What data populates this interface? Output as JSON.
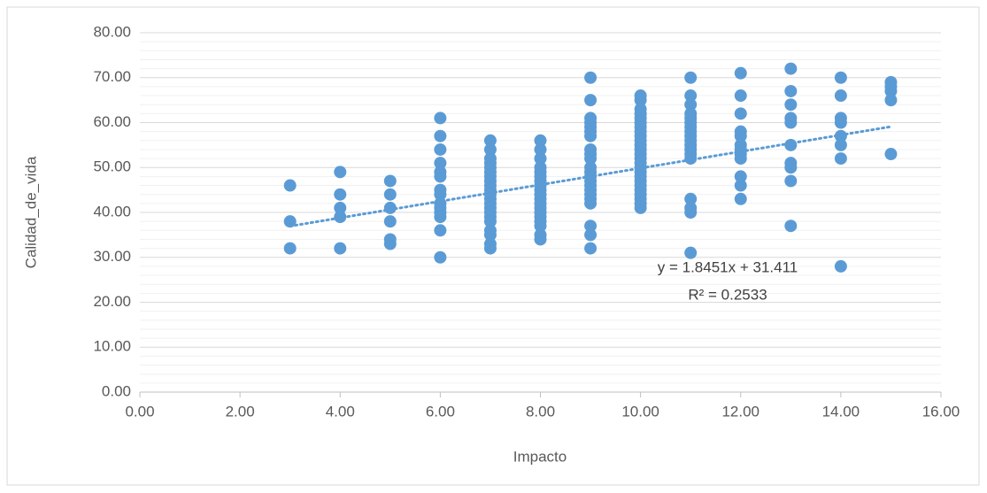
{
  "chart_data": {
    "type": "scatter",
    "x_label": "Impacto",
    "y_label": "Calidad_de_vida",
    "xlim": [
      0,
      16
    ],
    "ylim": [
      0,
      80
    ],
    "xticks": [
      {
        "value": 0,
        "label": "0.00"
      },
      {
        "value": 2,
        "label": "2.00"
      },
      {
        "value": 4,
        "label": "4.00"
      },
      {
        "value": 6,
        "label": "6.00"
      },
      {
        "value": 8,
        "label": "8.00"
      },
      {
        "value": 10,
        "label": "10.00"
      },
      {
        "value": 12,
        "label": "12.00"
      },
      {
        "value": 14,
        "label": "14.00"
      },
      {
        "value": 16,
        "label": "16.00"
      }
    ],
    "yticks": [
      {
        "value": 0,
        "label": "0.00"
      },
      {
        "value": 10,
        "label": "10.00"
      },
      {
        "value": 20,
        "label": "20.00"
      },
      {
        "value": 30,
        "label": "30.00"
      },
      {
        "value": 40,
        "label": "40.00"
      },
      {
        "value": 50,
        "label": "50.00"
      },
      {
        "value": 60,
        "label": "60.00"
      },
      {
        "value": 70,
        "label": "70.00"
      },
      {
        "value": 80,
        "label": "80.00"
      }
    ],
    "grid": true,
    "series": [
      {
        "color": "#5b9bd5",
        "x": [
          3,
          3,
          3,
          4,
          4,
          4,
          4,
          4,
          5,
          5,
          5,
          5,
          5,
          5,
          6,
          6,
          6,
          6,
          6,
          6,
          6,
          6,
          6,
          6,
          6,
          6,
          6,
          6,
          7,
          7,
          7,
          7,
          7,
          7,
          7,
          7,
          7,
          7,
          7,
          7,
          7,
          7,
          7,
          7,
          7,
          7,
          7,
          7,
          7,
          8,
          8,
          8,
          8,
          8,
          8,
          8,
          8,
          8,
          8,
          8,
          8,
          8,
          8,
          8,
          8,
          8,
          8,
          8,
          9,
          9,
          9,
          9,
          9,
          9,
          9,
          9,
          9,
          9,
          9,
          9,
          9,
          9,
          9,
          9,
          9,
          9,
          9,
          9,
          9,
          9,
          10,
          10,
          10,
          10,
          10,
          10,
          10,
          10,
          10,
          10,
          10,
          10,
          10,
          10,
          10,
          10,
          10,
          10,
          10,
          10,
          10,
          10,
          10,
          10,
          10,
          11,
          11,
          11,
          11,
          11,
          11,
          11,
          11,
          11,
          11,
          11,
          11,
          11,
          11,
          11,
          11,
          11,
          11,
          12,
          12,
          12,
          12,
          12,
          12,
          12,
          12,
          12,
          12,
          12,
          12,
          13,
          13,
          13,
          13,
          13,
          13,
          13,
          13,
          13,
          13,
          14,
          14,
          14,
          14,
          14,
          14,
          14,
          14,
          15,
          15,
          15,
          15,
          15
        ],
        "values": [
          46,
          38,
          32,
          49,
          44,
          41,
          39,
          32,
          47,
          44,
          41,
          38,
          34,
          33,
          61,
          57,
          54,
          51,
          49,
          48,
          45,
          44,
          42,
          41,
          40,
          39,
          36,
          30,
          56,
          54,
          52,
          51,
          50,
          49,
          48,
          47,
          46,
          45,
          44,
          43,
          42,
          41,
          40,
          39,
          38,
          36,
          35,
          33,
          32,
          56,
          54,
          52,
          50,
          49,
          48,
          47,
          46,
          45,
          44,
          43,
          42,
          41,
          40,
          39,
          38,
          37,
          35,
          34,
          70,
          65,
          61,
          60,
          59,
          58,
          57,
          54,
          53,
          52,
          50,
          49,
          48,
          47,
          46,
          45,
          44,
          43,
          42,
          37,
          35,
          32,
          66,
          65,
          63,
          62,
          61,
          60,
          59,
          58,
          57,
          56,
          55,
          54,
          53,
          52,
          51,
          50,
          49,
          48,
          47,
          46,
          45,
          44,
          43,
          42,
          41,
          70,
          66,
          64,
          62,
          61,
          60,
          59,
          58,
          57,
          56,
          55,
          54,
          53,
          52,
          43,
          41,
          40,
          31,
          71,
          66,
          62,
          58,
          57,
          55,
          54,
          53,
          52,
          48,
          46,
          43,
          72,
          67,
          64,
          61,
          60,
          55,
          51,
          50,
          47,
          37,
          70,
          66,
          61,
          60,
          57,
          55,
          52,
          28,
          69,
          68,
          67,
          65,
          53
        ]
      }
    ],
    "trendline": {
      "slope": 1.8451,
      "intercept": 31.411,
      "equation": "y = 1.8451x + 31.411",
      "r2": "R² = 0.2533"
    }
  }
}
